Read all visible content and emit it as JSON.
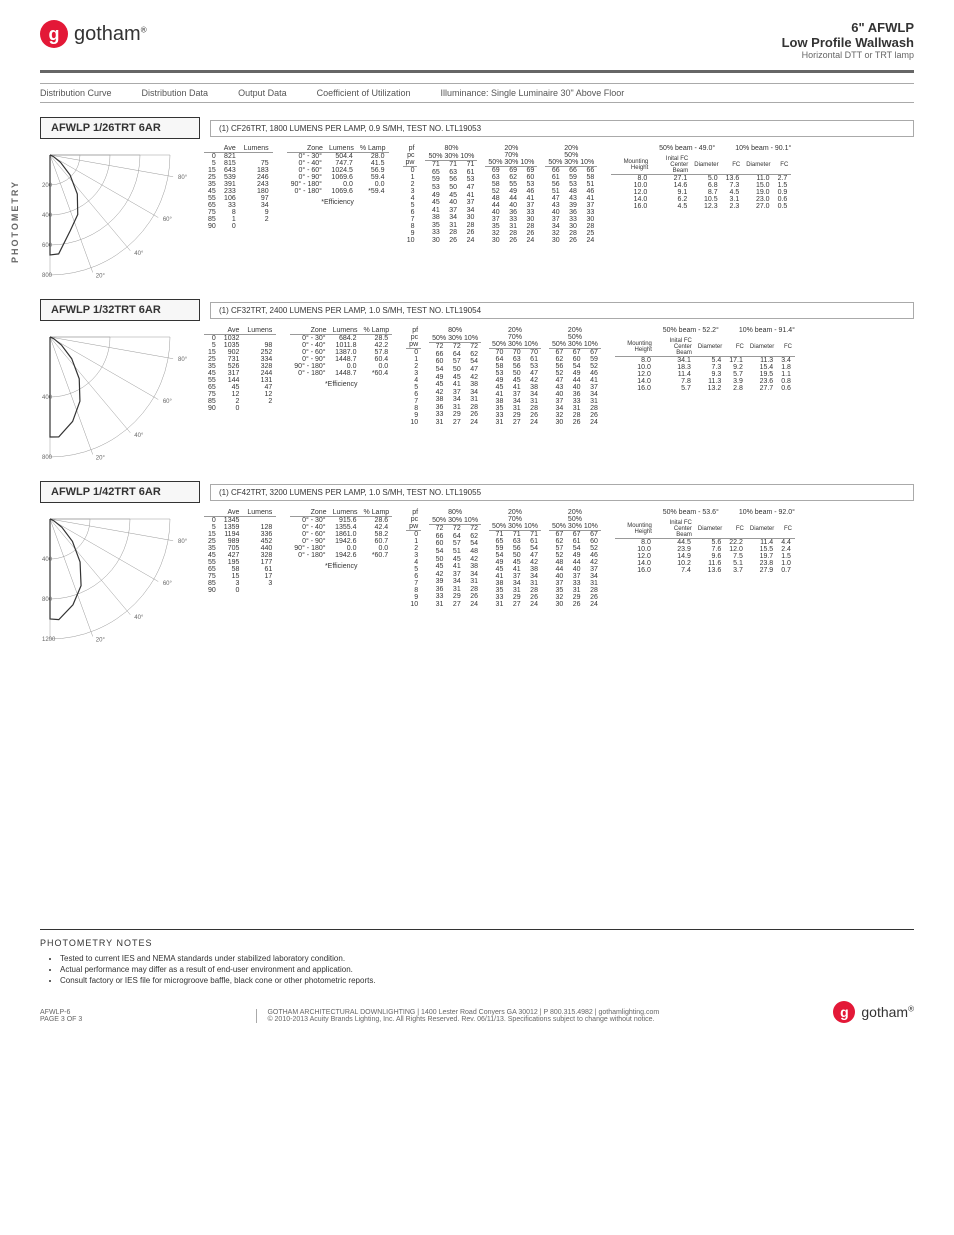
{
  "brand": "gotham",
  "brand_logo_letter": "g",
  "registered": "®",
  "header": {
    "title1": "6\" AFWLP",
    "title2": "Low Profile Wallwash",
    "title3": "Horizontal DTT or TRT lamp"
  },
  "side_label": "PHOTOMETRY",
  "section_heads": [
    "Distribution Curve",
    "Distribution Data",
    "Output Data",
    "Coefficient of Utilization",
    "Illuminance: Single Luminaire 30\" Above Floor"
  ],
  "products": [
    {
      "model": "AFWLP 1/26TRT 6AR",
      "desc": "(1) CF26TRT, 1800 LUMENS PER LAMP, 0.9 S/MH, TEST NO. LTL19053",
      "curve": {
        "rings": [
          200,
          400,
          600,
          800
        ],
        "angles": [
          "80°",
          "60°",
          "40°",
          "20°"
        ]
      },
      "dist": {
        "headers": [
          "",
          "Ave",
          "Lumens"
        ],
        "rows": [
          [
            "0",
            "821",
            ""
          ],
          [
            "5",
            "815",
            "75"
          ],
          [
            "15",
            "643",
            "183"
          ],
          [
            "25",
            "539",
            "246"
          ],
          [
            "35",
            "391",
            "243"
          ],
          [
            "45",
            "233",
            "180"
          ],
          [
            "55",
            "106",
            "97"
          ],
          [
            "65",
            "33",
            "34"
          ],
          [
            "75",
            "8",
            "9"
          ],
          [
            "85",
            "1",
            "2"
          ],
          [
            "90",
            "0",
            ""
          ]
        ]
      },
      "output": {
        "headers": [
          "Zone",
          "Lumens",
          "% Lamp"
        ],
        "rows": [
          [
            "0° - 30°",
            "504.4",
            "28.0"
          ],
          [
            "0° - 40°",
            "747.7",
            "41.5"
          ],
          [
            "0° - 60°",
            "1024.5",
            "56.9"
          ],
          [
            "0° - 90°",
            "1069.6",
            "59.4"
          ],
          [
            "90° - 180°",
            "0.0",
            "0.0"
          ],
          [
            "0° - 180°",
            "1069.6",
            "*59.4"
          ]
        ],
        "eff": "*Efficiency"
      },
      "cu_headers": {
        "pf": "pf",
        "pc": "pc",
        "pw": "pw",
        "c1": "20%",
        "c2": "80%",
        "c3": "70%",
        "c4": "50%",
        "sub": "50% 30% 10%"
      },
      "cu": {
        "rows": [
          [
            "0",
            "71",
            "71",
            "71",
            "69",
            "69",
            "69",
            "66",
            "66",
            "66"
          ],
          [
            "1",
            "65",
            "63",
            "61",
            "63",
            "62",
            "60",
            "61",
            "59",
            "58"
          ],
          [
            "2",
            "59",
            "56",
            "53",
            "58",
            "55",
            "53",
            "56",
            "53",
            "51"
          ],
          [
            "3",
            "53",
            "50",
            "47",
            "52",
            "49",
            "46",
            "51",
            "48",
            "46"
          ],
          [
            "4",
            "49",
            "45",
            "41",
            "48",
            "44",
            "41",
            "47",
            "43",
            "41"
          ],
          [
            "5",
            "45",
            "40",
            "37",
            "44",
            "40",
            "37",
            "43",
            "39",
            "37"
          ],
          [
            "6",
            "41",
            "37",
            "34",
            "40",
            "36",
            "33",
            "40",
            "36",
            "33"
          ],
          [
            "7",
            "38",
            "34",
            "30",
            "37",
            "33",
            "30",
            "37",
            "33",
            "30"
          ],
          [
            "8",
            "35",
            "31",
            "28",
            "35",
            "31",
            "28",
            "34",
            "30",
            "28"
          ],
          [
            "9",
            "33",
            "28",
            "26",
            "32",
            "28",
            "26",
            "32",
            "28",
            "25"
          ],
          [
            "10",
            "30",
            "26",
            "24",
            "30",
            "26",
            "24",
            "30",
            "26",
            "24"
          ]
        ]
      },
      "ill": {
        "beam50": "50% beam - 49.0°",
        "beam10": "10% beam - 90.1°",
        "headers": [
          "Mounting Height",
          "Inital FC Center Beam",
          "Diameter",
          "FC",
          "Diameter",
          "FC"
        ],
        "rows": [
          [
            "8.0",
            "27.1",
            "5.0",
            "13.6",
            "11.0",
            "2.7"
          ],
          [
            "10.0",
            "14.6",
            "6.8",
            "7.3",
            "15.0",
            "1.5"
          ],
          [
            "12.0",
            "9.1",
            "8.7",
            "4.5",
            "19.0",
            "0.9"
          ],
          [
            "14.0",
            "6.2",
            "10.5",
            "3.1",
            "23.0",
            "0.6"
          ],
          [
            "16.0",
            "4.5",
            "12.3",
            "2.3",
            "27.0",
            "0.5"
          ]
        ]
      }
    },
    {
      "model": "AFWLP 1/32TRT 6AR",
      "desc": "(1) CF32TRT, 2400 LUMENS PER LAMP, 1.0 S/MH, TEST NO. LTL19054",
      "curve": {
        "rings": [
          400,
          800
        ],
        "angles": [
          "80°",
          "60°",
          "40°",
          "20°"
        ]
      },
      "dist": {
        "headers": [
          "",
          "Ave",
          "Lumens"
        ],
        "rows": [
          [
            "0",
            "1032",
            ""
          ],
          [
            "5",
            "1035",
            "98"
          ],
          [
            "15",
            "902",
            "252"
          ],
          [
            "25",
            "731",
            "334"
          ],
          [
            "35",
            "526",
            "328"
          ],
          [
            "45",
            "317",
            "244"
          ],
          [
            "55",
            "144",
            "131"
          ],
          [
            "65",
            "45",
            "47"
          ],
          [
            "75",
            "12",
            "12"
          ],
          [
            "85",
            "2",
            "2"
          ],
          [
            "90",
            "0",
            ""
          ]
        ]
      },
      "output": {
        "headers": [
          "Zone",
          "Lumens",
          "% Lamp"
        ],
        "rows": [
          [
            "0° - 30°",
            "684.2",
            "28.5"
          ],
          [
            "0° - 40°",
            "1011.8",
            "42.2"
          ],
          [
            "0° - 60°",
            "1387.0",
            "57.8"
          ],
          [
            "0° - 90°",
            "1448.7",
            "60.4"
          ],
          [
            "90° - 180°",
            "0.0",
            "0.0"
          ],
          [
            "0° - 180°",
            "1448.7",
            "*60.4"
          ]
        ],
        "eff": "*Efficiency"
      },
      "cu": {
        "rows": [
          [
            "0",
            "72",
            "72",
            "72",
            "70",
            "70",
            "70",
            "67",
            "67",
            "67"
          ],
          [
            "1",
            "66",
            "64",
            "62",
            "64",
            "63",
            "61",
            "62",
            "60",
            "59"
          ],
          [
            "2",
            "60",
            "57",
            "54",
            "58",
            "56",
            "53",
            "56",
            "54",
            "52"
          ],
          [
            "3",
            "54",
            "50",
            "47",
            "53",
            "50",
            "47",
            "52",
            "49",
            "46"
          ],
          [
            "4",
            "49",
            "45",
            "42",
            "49",
            "45",
            "42",
            "47",
            "44",
            "41"
          ],
          [
            "5",
            "45",
            "41",
            "38",
            "45",
            "41",
            "38",
            "43",
            "40",
            "37"
          ],
          [
            "6",
            "42",
            "37",
            "34",
            "41",
            "37",
            "34",
            "40",
            "36",
            "34"
          ],
          [
            "7",
            "38",
            "34",
            "31",
            "38",
            "34",
            "31",
            "37",
            "33",
            "31"
          ],
          [
            "8",
            "36",
            "31",
            "28",
            "35",
            "31",
            "28",
            "34",
            "31",
            "28"
          ],
          [
            "9",
            "33",
            "29",
            "26",
            "33",
            "29",
            "26",
            "32",
            "28",
            "26"
          ],
          [
            "10",
            "31",
            "27",
            "24",
            "31",
            "27",
            "24",
            "30",
            "26",
            "24"
          ]
        ]
      },
      "ill": {
        "beam50": "50% beam - 52.2°",
        "beam10": "10% beam - 91.4°",
        "headers": [
          "Mounting Height",
          "Inital FC Center Beam",
          "Diameter",
          "FC",
          "Diameter",
          "FC"
        ],
        "rows": [
          [
            "8.0",
            "34.1",
            "5.4",
            "17.1",
            "11.3",
            "3.4"
          ],
          [
            "10.0",
            "18.3",
            "7.3",
            "9.2",
            "15.4",
            "1.8"
          ],
          [
            "12.0",
            "11.4",
            "9.3",
            "5.7",
            "19.5",
            "1.1"
          ],
          [
            "14.0",
            "7.8",
            "11.3",
            "3.9",
            "23.6",
            "0.8"
          ],
          [
            "16.0",
            "5.7",
            "13.2",
            "2.8",
            "27.7",
            "0.6"
          ]
        ]
      }
    },
    {
      "model": "AFWLP 1/42TRT 6AR",
      "desc": "(1) CF42TRT, 3200 LUMENS PER LAMP, 1.0 S/MH, TEST NO. LTL19055",
      "curve": {
        "rings": [
          400,
          800,
          1200
        ],
        "angles": [
          "80°",
          "60°",
          "40°",
          "20°"
        ]
      },
      "dist": {
        "headers": [
          "",
          "Ave",
          "Lumens"
        ],
        "rows": [
          [
            "0",
            "1345",
            ""
          ],
          [
            "5",
            "1359",
            "128"
          ],
          [
            "15",
            "1194",
            "336"
          ],
          [
            "25",
            "989",
            "452"
          ],
          [
            "35",
            "705",
            "440"
          ],
          [
            "45",
            "427",
            "328"
          ],
          [
            "55",
            "195",
            "177"
          ],
          [
            "65",
            "58",
            "61"
          ],
          [
            "75",
            "15",
            "17"
          ],
          [
            "85",
            "3",
            "3"
          ],
          [
            "90",
            "0",
            ""
          ]
        ]
      },
      "output": {
        "headers": [
          "Zone",
          "Lumens",
          "% Lamp"
        ],
        "rows": [
          [
            "0° - 30°",
            "915.6",
            "28.6"
          ],
          [
            "0° - 40°",
            "1355.4",
            "42.4"
          ],
          [
            "0° - 60°",
            "1861.0",
            "58.2"
          ],
          [
            "0° - 90°",
            "1942.6",
            "60.7"
          ],
          [
            "90° - 180°",
            "0.0",
            "0.0"
          ],
          [
            "0° - 180°",
            "1942.6",
            "*60.7"
          ]
        ],
        "eff": "*Efficiency"
      },
      "cu": {
        "rows": [
          [
            "0",
            "72",
            "72",
            "72",
            "71",
            "71",
            "71",
            "67",
            "67",
            "67"
          ],
          [
            "1",
            "66",
            "64",
            "62",
            "65",
            "63",
            "61",
            "62",
            "61",
            "60"
          ],
          [
            "2",
            "60",
            "57",
            "54",
            "59",
            "56",
            "54",
            "57",
            "54",
            "52"
          ],
          [
            "3",
            "54",
            "51",
            "48",
            "54",
            "50",
            "47",
            "52",
            "49",
            "46"
          ],
          [
            "4",
            "50",
            "45",
            "42",
            "49",
            "45",
            "42",
            "48",
            "44",
            "42"
          ],
          [
            "5",
            "45",
            "41",
            "38",
            "45",
            "41",
            "38",
            "44",
            "40",
            "37"
          ],
          [
            "6",
            "42",
            "37",
            "34",
            "41",
            "37",
            "34",
            "40",
            "37",
            "34"
          ],
          [
            "7",
            "39",
            "34",
            "31",
            "38",
            "34",
            "31",
            "37",
            "33",
            "31"
          ],
          [
            "8",
            "36",
            "31",
            "28",
            "35",
            "31",
            "28",
            "35",
            "31",
            "28"
          ],
          [
            "9",
            "33",
            "29",
            "26",
            "33",
            "29",
            "26",
            "32",
            "29",
            "26"
          ],
          [
            "10",
            "31",
            "27",
            "24",
            "31",
            "27",
            "24",
            "30",
            "26",
            "24"
          ]
        ]
      },
      "ill": {
        "beam50": "50% beam - 53.6°",
        "beam10": "10% beam - 92.0°",
        "headers": [
          "Mounting Height",
          "Inital FC Center Beam",
          "Diameter",
          "FC",
          "Diameter",
          "FC"
        ],
        "rows": [
          [
            "8.0",
            "44.5",
            "5.6",
            "22.2",
            "11.4",
            "4.4"
          ],
          [
            "10.0",
            "23.9",
            "7.6",
            "12.0",
            "15.5",
            "2.4"
          ],
          [
            "12.0",
            "14.9",
            "9.6",
            "7.5",
            "19.7",
            "1.5"
          ],
          [
            "14.0",
            "10.2",
            "11.6",
            "5.1",
            "23.8",
            "1.0"
          ],
          [
            "16.0",
            "7.4",
            "13.6",
            "3.7",
            "27.9",
            "0.7"
          ]
        ]
      }
    }
  ],
  "notes": {
    "title": "PHOTOMETRY NOTES",
    "items": [
      "Tested to current IES and NEMA standards under stabilized laboratory condition.",
      "Actual performance may differ as a result of end-user environment and application.",
      "Consult factory or IES file for microgroove baffle, black cone or other photometric reports."
    ]
  },
  "footer": {
    "left1": "AFWLP-6",
    "left2": "PAGE 3 OF 3",
    "center1": "GOTHAM ARCHITECTURAL DOWNLIGHTING  |  1400 Lester Road Conyers GA 30012  |  P 800.315.4982  |  gothamlighting.com",
    "center2": "© 2010-2013 Acuity Brands Lighting, Inc. All Rights Reserved. Rev. 06/11/13. Specifications subject to change without notice."
  },
  "styling": {
    "brand_red": "#e31837",
    "text_color": "#333333",
    "rule_color": "#666666",
    "box_bg": "#f7f7f7"
  }
}
